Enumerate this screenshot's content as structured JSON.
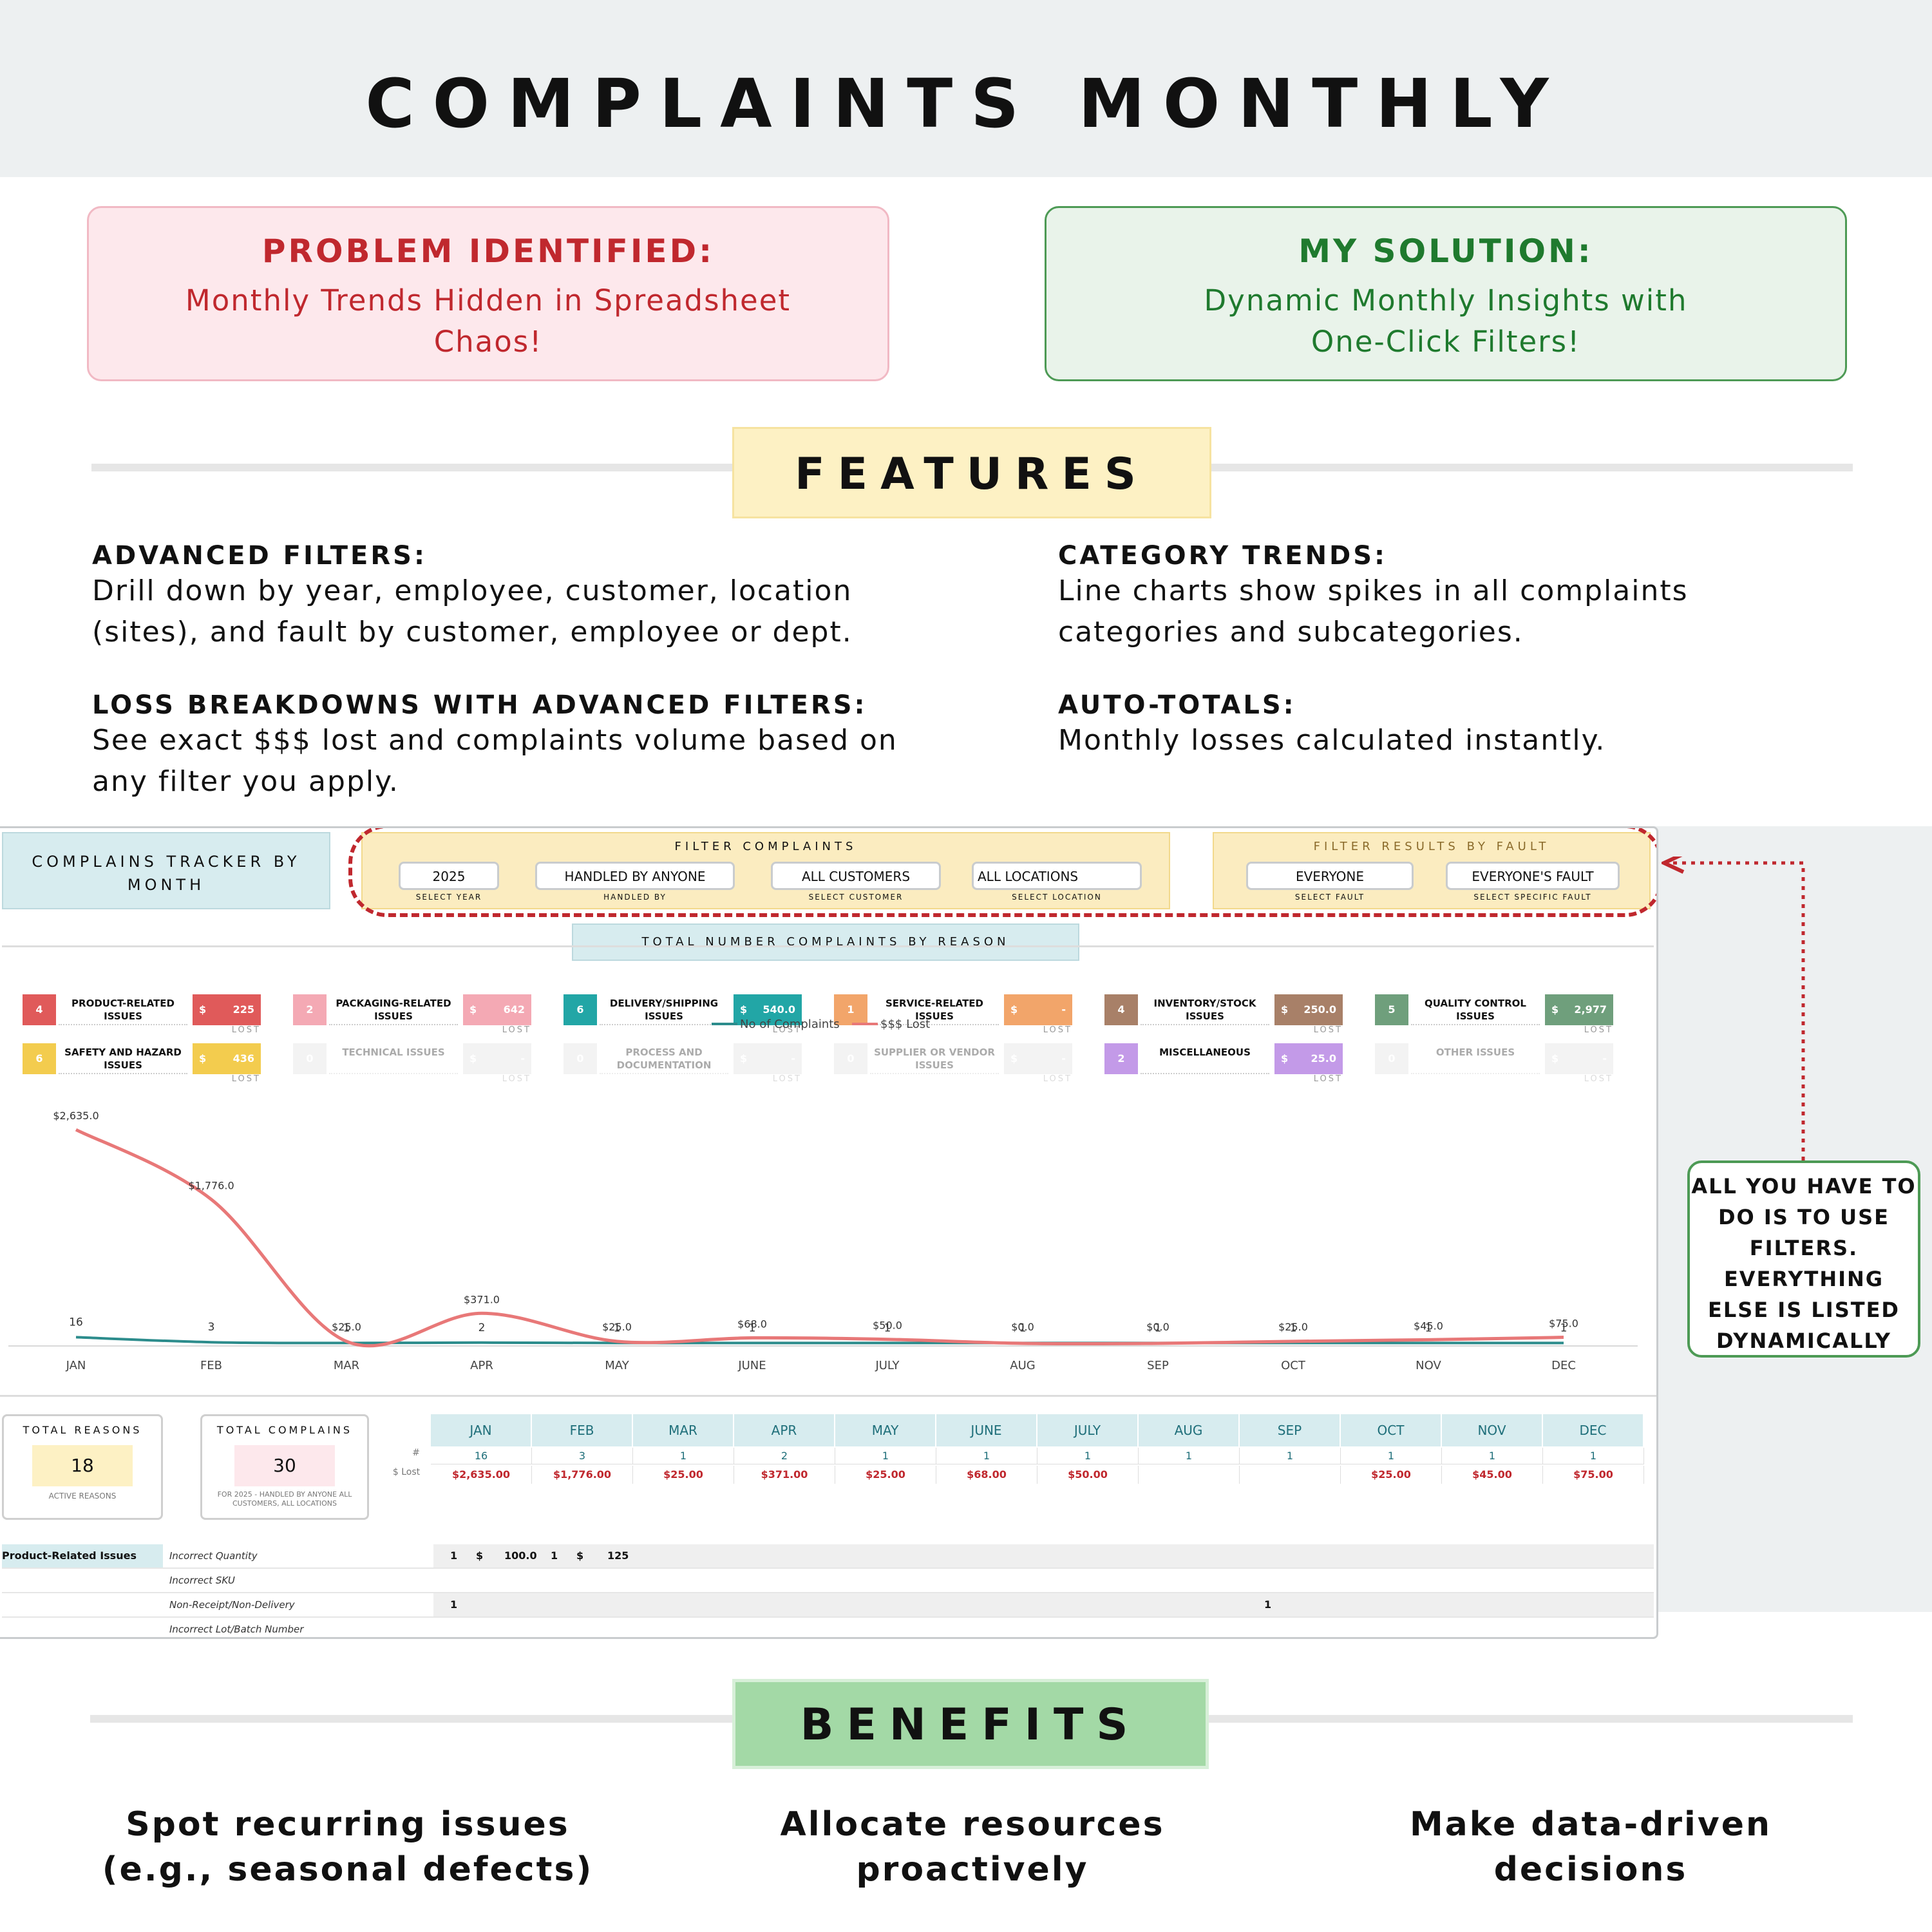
{
  "title": "COMPLAINTS MONTHLY",
  "problem": {
    "heading": "PROBLEM IDENTIFIED:",
    "body": "Monthly Trends Hidden in Spreadsheet Chaos!"
  },
  "solution": {
    "heading": "MY SOLUTION:",
    "body": "Dynamic Monthly Insights with One-Click Filters!"
  },
  "features": {
    "title": "FEATURES",
    "items": [
      {
        "heading": "ADVANCED FILTERS:",
        "body": "Drill down by year, employee, customer, location (sites), and fault by customer, employee or dept."
      },
      {
        "heading": "CATEGORY TRENDS:",
        "body": "Line charts show spikes in all complaints categories and subcategories."
      },
      {
        "heading": "LOSS BREAKDOWNS WITH ADVANCED FILTERS:",
        "body": "See exact $$$ lost and complaints volume based on any filter you apply."
      },
      {
        "heading": "AUTO-TOTALS:",
        "body": "Monthly losses calculated instantly."
      }
    ]
  },
  "dashboard": {
    "tracker_title": "COMPLAINS TRACKER BY MONTH",
    "filter_title": "FILTER COMPLAINTS",
    "filters": [
      {
        "value": "2025",
        "label": "SELECT YEAR"
      },
      {
        "value": "HANDLED BY ANYONE",
        "label": "HANDLED BY"
      },
      {
        "value": "ALL CUSTOMERS",
        "label": "SELECT CUSTOMER"
      },
      {
        "value": "ALL LOCATIONS",
        "label": "SELECT LOCATION"
      }
    ],
    "fault_title": "FILTER RESULTS BY FAULT",
    "fault_filters": [
      {
        "value": "EVERYONE",
        "label": "SELECT FAULT"
      },
      {
        "value": "EVERYONE'S FAULT",
        "label": "SELECT SPECIFIC FAULT"
      }
    ],
    "reasons_title": "TOTAL NUMBER COMPLAINTS BY REASON",
    "lost_label": "LOST",
    "reasons": [
      {
        "count": "4",
        "name": "PRODUCT-RELATED ISSUES",
        "dollar": "$",
        "amount": "225",
        "color": "#e05a5a",
        "active": true
      },
      {
        "count": "2",
        "name": "PACKAGING-RELATED ISSUES",
        "dollar": "$",
        "amount": "642",
        "color": "#f4a9b4",
        "active": true
      },
      {
        "count": "6",
        "name": "DELIVERY/SHIPPING ISSUES",
        "dollar": "$",
        "amount": "540.0",
        "color": "#22a6a6",
        "active": true
      },
      {
        "count": "1",
        "name": "SERVICE-RELATED ISSUES",
        "dollar": "$",
        "amount": "-",
        "color": "#f2a56a",
        "active": true
      },
      {
        "count": "4",
        "name": "INVENTORY/STOCK ISSUES",
        "dollar": "$",
        "amount": "250.0",
        "color": "#a88068",
        "active": true
      },
      {
        "count": "5",
        "name": "QUALITY CONTROL ISSUES",
        "dollar": "$",
        "amount": "2,977",
        "color": "#6f9f7c",
        "active": true
      },
      {
        "count": "6",
        "name": "SAFETY AND HAZARD ISSUES",
        "dollar": "$",
        "amount": "436",
        "color": "#f3cc4e",
        "active": true
      },
      {
        "count": "0",
        "name": "TECHNICAL ISSUES",
        "dollar": "$",
        "amount": "-",
        "color": "#dddddd",
        "active": false
      },
      {
        "count": "0",
        "name": "PROCESS AND DOCUMENTATION",
        "dollar": "$",
        "amount": "-",
        "color": "#dddddd",
        "active": false
      },
      {
        "count": "0",
        "name": "SUPPLIER OR VENDOR ISSUES",
        "dollar": "$",
        "amount": "-",
        "color": "#dddddd",
        "active": false
      },
      {
        "count": "2",
        "name": "MISCELLANEOUS",
        "dollar": "$",
        "amount": "25.0",
        "color": "#c39ae8",
        "active": true
      },
      {
        "count": "0",
        "name": "OTHER ISSUES",
        "dollar": "$",
        "amount": "-",
        "color": "#dddddd",
        "active": false
      }
    ],
    "totals": {
      "reasons_label": "TOTAL REASONS",
      "reasons_value": "18",
      "reasons_sub": "ACTIVE REASONS",
      "complains_label": "TOTAL COMPLAINS",
      "complains_value": "30",
      "complains_sub": "FOR 2025 - HANDLED BY ANYONE ALL CUSTOMERS, ALL LOCATIONS"
    },
    "table": {
      "row_hash": "#",
      "row_lost": "$ Lost",
      "months": [
        "JAN",
        "FEB",
        "MAR",
        "APR",
        "MAY",
        "JUNE",
        "JULY",
        "AUG",
        "SEP",
        "OCT",
        "NOV",
        "DEC"
      ],
      "counts": [
        "16",
        "3",
        "1",
        "2",
        "1",
        "1",
        "1",
        "1",
        "1",
        "1",
        "1",
        "1"
      ],
      "lost": [
        "$2,635.00",
        "$1,776.00",
        "$25.00",
        "$371.00",
        "$25.00",
        "$68.00",
        "$50.00",
        "",
        "",
        "$25.00",
        "$45.00",
        "$75.00"
      ]
    },
    "detail": {
      "category": "Product-Related Issues",
      "rows": [
        "Incorrect Quantity",
        "Incorrect SKU",
        "Non-Receipt/Non-Delivery",
        "Incorrect Lot/Batch Number"
      ],
      "row1_vals": [
        "1",
        "$",
        "100.0",
        "1",
        "$",
        "125"
      ],
      "row3_a": "1",
      "row3_b": "1"
    }
  },
  "chart_data": {
    "type": "line",
    "categories": [
      "JAN",
      "FEB",
      "MAR",
      "APR",
      "MAY",
      "JUNE",
      "JULY",
      "AUG",
      "SEP",
      "OCT",
      "NOV",
      "DEC"
    ],
    "series": [
      {
        "name": "No of Complaints",
        "values": [
          16,
          3,
          1,
          2,
          1,
          1,
          1,
          1,
          1,
          1,
          1,
          1
        ],
        "color": "#2c8c8c"
      },
      {
        "name": "$$$ Lost",
        "values": [
          2635,
          1776,
          25,
          371,
          25,
          68,
          50,
          0,
          0,
          25,
          45,
          75
        ],
        "color": "#e87878"
      }
    ],
    "point_labels_count": [
      "16",
      "3",
      "1",
      "2",
      "1",
      "1",
      "1",
      "1",
      "1",
      "1",
      "1",
      "1"
    ],
    "point_labels_lost": [
      "$2,635.0",
      "$1,776.0",
      "$25.0",
      "$371.0",
      "$25.0",
      "$68.0",
      "$50.0",
      "$0.0",
      "$0.0",
      "$25.0",
      "$45.0",
      "$75.0"
    ],
    "legend": "top-center",
    "grid": false
  },
  "callout": "ALL YOU HAVE TO DO IS TO USE FILTERS. EVERYTHING ELSE IS LISTED DYNAMICALLY",
  "benefits": {
    "title": "BENEFITS",
    "items": [
      "Spot recurring issues (e.g., seasonal defects)",
      "Allocate resources proactively",
      "Make data-driven decisions"
    ]
  },
  "colors": {
    "problem_bg": "#fde8ec",
    "problem_text": "#c0282e",
    "solution_bg": "#e9f3ea",
    "solution_text": "#1f7a2e",
    "features_bg": "#fdf1c4",
    "benefits_bg": "#a3d9a6"
  }
}
